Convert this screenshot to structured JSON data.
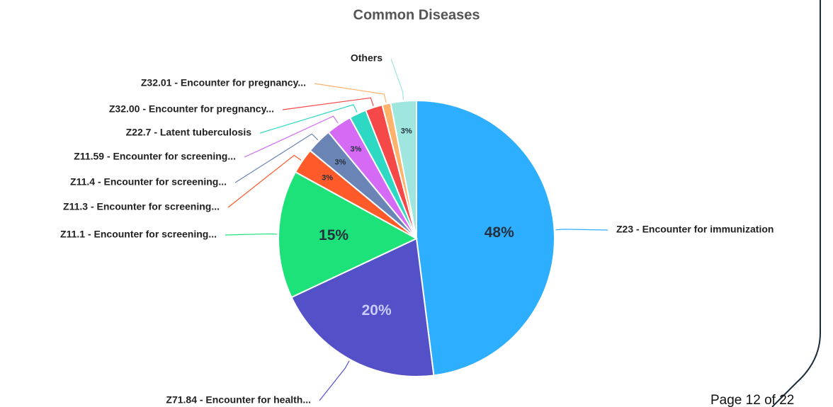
{
  "chart_data": {
    "type": "pie",
    "title": "Common Diseases",
    "categories": [
      "Z23 - Encounter for immunization",
      "Z71.84 - Encounter for health...",
      "Z11.1 - Encounter for screening...",
      "Z11.3 - Encounter for screening...",
      "Z11.4 - Encounter for screening...",
      "Z11.59 - Encounter for screening...",
      "Z22.7 - Latent tuberculosis",
      "Z32.00 - Encounter for pregnancy...",
      "Z32.01 - Encounter for pregnancy...",
      "Others"
    ],
    "values": [
      48,
      20,
      15,
      3,
      3,
      3,
      2,
      2,
      1,
      3
    ],
    "value_labels": [
      "48%",
      "20%",
      "15%",
      "3%",
      "3%",
      "3%",
      null,
      null,
      null,
      "3%"
    ],
    "colors": [
      "#2eaeff",
      "#5350c8",
      "#1de27a",
      "#ff5a2a",
      "#6a85b5",
      "#d56af5",
      "#2ed9c3",
      "#f54848",
      "#ffb26b",
      "#9ee6de"
    ]
  },
  "footer": {
    "page": "Page 12 of 22"
  }
}
